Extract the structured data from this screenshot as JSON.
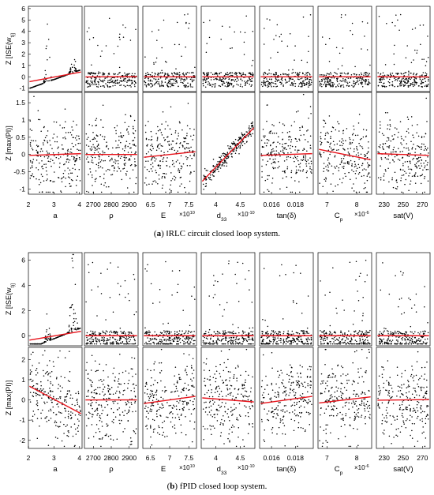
{
  "figure": {
    "caption_a": {
      "tag": "a",
      "text": "‖RLC circuit closed loop system."
    },
    "caption_b": {
      "tag": "b",
      "text": "fPID closed loop system."
    }
  },
  "chart_data": [
    {
      "type": "scatter",
      "panel": "a",
      "row_ylabels": [
        "Z [ISE(w_t)]",
        "Z [max(PI)]"
      ],
      "columns": [
        {
          "xlabel": "a",
          "xticks": [
            2,
            3,
            4
          ],
          "xlim": [
            2,
            4.1
          ]
        },
        {
          "xlabel": "ρ",
          "xticks": [
            2700,
            2800,
            2900
          ],
          "xlim": [
            2650,
            2950
          ]
        },
        {
          "xlabel": "E",
          "xscale_label": "×10^10",
          "xticks": [
            6.5,
            7,
            7.5
          ],
          "xlim": [
            6.3,
            7.7
          ]
        },
        {
          "xlabel": "d33",
          "xscale_label": "×10^-10",
          "xticks": [
            4,
            4.5
          ],
          "xlim": [
            3.7,
            4.8
          ]
        },
        {
          "xlabel": "tan(δ)",
          "xticks": [
            0.016,
            0.018
          ],
          "xlim": [
            0.015,
            0.0195
          ]
        },
        {
          "xlabel": "Cp",
          "xscale_label": "×10^-6",
          "xticks": [
            7,
            8
          ],
          "xlim": [
            6.7,
            8.5
          ]
        },
        {
          "xlabel": "sat(V)",
          "xticks": [
            230,
            250,
            270
          ],
          "xlim": [
            222,
            278
          ]
        }
      ],
      "rows": [
        {
          "yticks": [
            -1,
            0,
            1,
            2,
            3,
            4,
            5,
            6
          ],
          "ylim": [
            -1.3,
            6.2
          ],
          "trend_slopes": [
            0.85,
            0.02,
            0.0,
            0.0,
            0.0,
            0.0,
            -0.02
          ]
        },
        {
          "yticks": [
            -1,
            -0.5,
            0,
            0.5,
            1,
            1.5
          ],
          "ylim": [
            -1.15,
            1.8
          ],
          "trend_slopes": [
            0.05,
            0.0,
            0.16,
            1.55,
            0.05,
            -0.3,
            -0.05
          ]
        }
      ]
    },
    {
      "type": "scatter",
      "panel": "b",
      "row_ylabels": [
        "Z [ISE(w_t)]",
        "Z [max(PI)]"
      ],
      "columns": [
        {
          "xlabel": "a",
          "xticks": [
            2,
            3,
            4
          ],
          "xlim": [
            2,
            4.1
          ]
        },
        {
          "xlabel": "ρ",
          "xticks": [
            2700,
            2800,
            2900
          ],
          "xlim": [
            2650,
            2950
          ]
        },
        {
          "xlabel": "E",
          "xscale_label": "×10^10",
          "xticks": [
            6.5,
            7,
            7.5
          ],
          "xlim": [
            6.3,
            7.7
          ]
        },
        {
          "xlabel": "d33",
          "xscale_label": "×10^-10",
          "xticks": [
            4,
            4.5
          ],
          "xlim": [
            3.7,
            4.8
          ]
        },
        {
          "xlabel": "tan(δ)",
          "xticks": [
            0.016,
            0.018
          ],
          "xlim": [
            0.015,
            0.0195
          ]
        },
        {
          "xlabel": "Cp",
          "xscale_label": "×10^-6",
          "xticks": [
            7,
            8
          ],
          "xlim": [
            6.7,
            8.5
          ]
        },
        {
          "xlabel": "sat(V)",
          "xticks": [
            230,
            250,
            270
          ],
          "xlim": [
            222,
            278
          ]
        }
      ],
      "rows": [
        {
          "yticks": [
            0,
            2,
            4,
            6
          ],
          "ylim": [
            -0.8,
            6.6
          ],
          "trend_slopes": [
            0.7,
            0.0,
            0.0,
            0.0,
            0.0,
            0.0,
            0.0
          ]
        },
        {
          "yticks": [
            -2,
            -1,
            0,
            1,
            2
          ],
          "ylim": [
            -2.4,
            2.6
          ],
          "trend_slopes": [
            -1.35,
            0.0,
            0.35,
            -0.2,
            0.35,
            0.3,
            0.03
          ]
        }
      ]
    }
  ],
  "colors": {
    "points": "#000000",
    "trend": "#e8141c",
    "axis": "#000000"
  }
}
